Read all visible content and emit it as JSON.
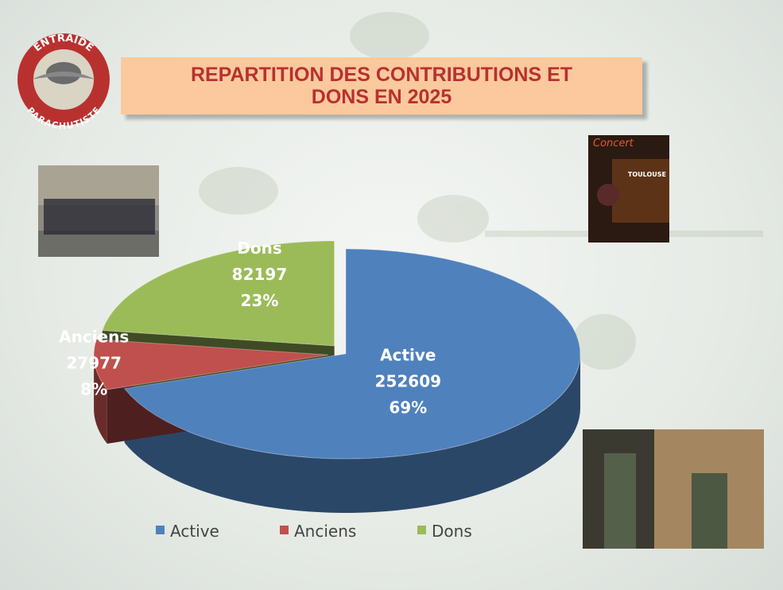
{
  "chart_data": {
    "type": "pie3d",
    "title": "REPARTITION DES CONTRIBUTIONS ET DONS EN 2025",
    "categories": [
      "Active",
      "Anciens",
      "Dons"
    ],
    "values": [
      252609,
      27977,
      82197
    ],
    "percent_labels": [
      "69%",
      "8%",
      "23%"
    ],
    "colors": [
      "#4f81bd",
      "#c0504d",
      "#9bbb59"
    ],
    "legend": "bottom"
  },
  "logo": {
    "top": "ENTRAIDE",
    "bottom": "PARACHUTISTE"
  },
  "poster": {
    "title": "Concert",
    "place": "TOULOUSE"
  }
}
